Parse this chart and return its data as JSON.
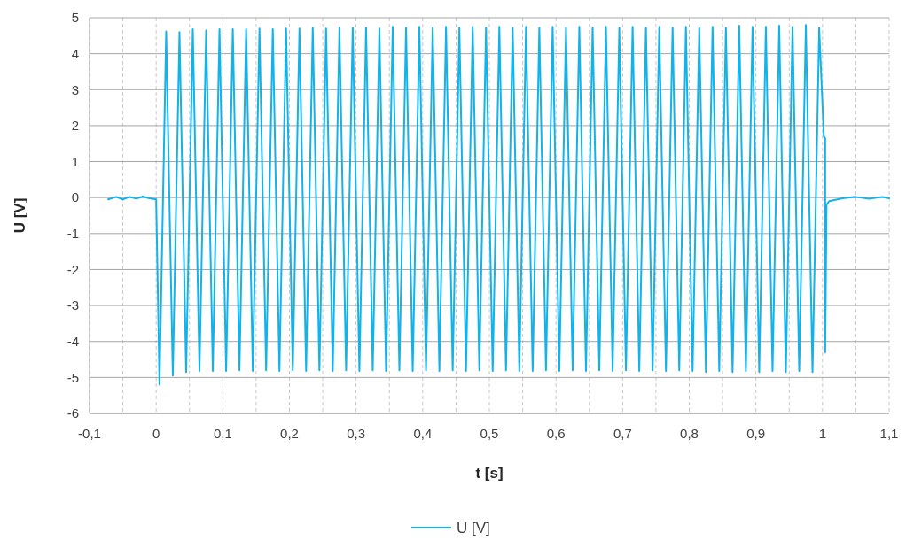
{
  "chart_data": {
    "type": "line",
    "xlabel": "t [s]",
    "ylabel": "U [V]",
    "xlim": [
      -0.1,
      1.1
    ],
    "ylim": [
      -6,
      5
    ],
    "xticks": [
      {
        "value": -0.1,
        "label": "-0,1"
      },
      {
        "value": -0.05,
        "label": null
      },
      {
        "value": 0,
        "label": "0"
      },
      {
        "value": 0.05,
        "label": null
      },
      {
        "value": 0.1,
        "label": "0,1"
      },
      {
        "value": 0.15,
        "label": null
      },
      {
        "value": 0.2,
        "label": "0,2"
      },
      {
        "value": 0.25,
        "label": null
      },
      {
        "value": 0.3,
        "label": "0,3"
      },
      {
        "value": 0.35,
        "label": null
      },
      {
        "value": 0.4,
        "label": "0,4"
      },
      {
        "value": 0.45,
        "label": null
      },
      {
        "value": 0.5,
        "label": "0,5"
      },
      {
        "value": 0.55,
        "label": null
      },
      {
        "value": 0.6,
        "label": "0,6"
      },
      {
        "value": 0.65,
        "label": null
      },
      {
        "value": 0.7,
        "label": "0,7"
      },
      {
        "value": 0.75,
        "label": null
      },
      {
        "value": 0.8,
        "label": "0,8"
      },
      {
        "value": 0.85,
        "label": null
      },
      {
        "value": 0.9,
        "label": "0,9"
      },
      {
        "value": 0.95,
        "label": null
      },
      {
        "value": 1,
        "label": "1"
      },
      {
        "value": 1.05,
        "label": null
      },
      {
        "value": 1.1,
        "label": "1,1"
      }
    ],
    "yticks": [
      -6,
      -5,
      -4,
      -3,
      -2,
      -1,
      0,
      1,
      2,
      3,
      4,
      5
    ],
    "grid": true,
    "legend": "bottom",
    "marker": "none",
    "line_style": "solid",
    "series": [
      {
        "name": "U [V]",
        "color": "#12b2ea",
        "x": [
          -0.072,
          -0.06,
          -0.05,
          -0.04,
          -0.03,
          -0.02,
          -0.01,
          0,
          0.005,
          0.015,
          0.025,
          0.035,
          0.045,
          0.055,
          0.065,
          0.075,
          0.085,
          0.095,
          0.105,
          0.115,
          0.125,
          0.135,
          0.145,
          0.155,
          0.165,
          0.175,
          0.185,
          0.195,
          0.205,
          0.215,
          0.225,
          0.235,
          0.245,
          0.255,
          0.265,
          0.275,
          0.285,
          0.295,
          0.305,
          0.315,
          0.325,
          0.335,
          0.345,
          0.355,
          0.365,
          0.375,
          0.385,
          0.395,
          0.405,
          0.415,
          0.425,
          0.435,
          0.445,
          0.455,
          0.465,
          0.475,
          0.485,
          0.495,
          0.505,
          0.515,
          0.525,
          0.535,
          0.545,
          0.555,
          0.565,
          0.575,
          0.585,
          0.595,
          0.605,
          0.615,
          0.625,
          0.635,
          0.645,
          0.655,
          0.665,
          0.675,
          0.685,
          0.695,
          0.705,
          0.715,
          0.725,
          0.735,
          0.745,
          0.755,
          0.765,
          0.775,
          0.785,
          0.795,
          0.805,
          0.815,
          0.825,
          0.835,
          0.845,
          0.855,
          0.865,
          0.875,
          0.885,
          0.895,
          0.905,
          0.915,
          0.925,
          0.935,
          0.945,
          0.955,
          0.965,
          0.975,
          0.985,
          0.995,
          1.002,
          1.004,
          1.004,
          1.006,
          1.01,
          1.03,
          1.05,
          1.07,
          1.09,
          1.1
        ],
        "values": [
          -0.05,
          0.02,
          -0.05,
          0.02,
          -0.03,
          0.03,
          -0.02,
          -0.05,
          -5.2,
          4.62,
          -4.95,
          4.6,
          -4.85,
          4.68,
          -4.82,
          4.65,
          -4.82,
          4.68,
          -4.82,
          4.68,
          -4.8,
          4.68,
          -4.82,
          4.7,
          -4.8,
          4.68,
          -4.82,
          4.7,
          -4.8,
          4.7,
          -4.82,
          4.72,
          -4.8,
          4.7,
          -4.82,
          4.72,
          -4.8,
          4.72,
          -4.82,
          4.72,
          -4.8,
          4.7,
          -4.82,
          4.75,
          -4.8,
          4.72,
          -4.82,
          4.75,
          -4.8,
          4.72,
          -4.82,
          4.75,
          -4.8,
          4.72,
          -4.82,
          4.75,
          -4.8,
          4.72,
          -4.82,
          4.75,
          -4.8,
          4.72,
          -4.82,
          4.75,
          -4.82,
          4.72,
          -4.8,
          4.75,
          -4.82,
          4.72,
          -4.8,
          4.75,
          -4.82,
          4.72,
          -4.8,
          4.75,
          -4.82,
          4.72,
          -4.8,
          4.75,
          -4.82,
          4.72,
          -4.8,
          4.75,
          -4.82,
          4.72,
          -4.8,
          4.75,
          -4.82,
          4.72,
          -4.85,
          4.75,
          -4.82,
          4.72,
          -4.85,
          4.78,
          -4.82,
          4.75,
          -4.85,
          4.75,
          -4.82,
          4.78,
          -4.85,
          4.75,
          -4.82,
          4.8,
          -4.85,
          4.72,
          1.7,
          1.65,
          -4.3,
          -0.2,
          -0.1,
          -0.02,
          0.02,
          -0.03,
          0.02,
          -0.02
        ]
      }
    ]
  }
}
